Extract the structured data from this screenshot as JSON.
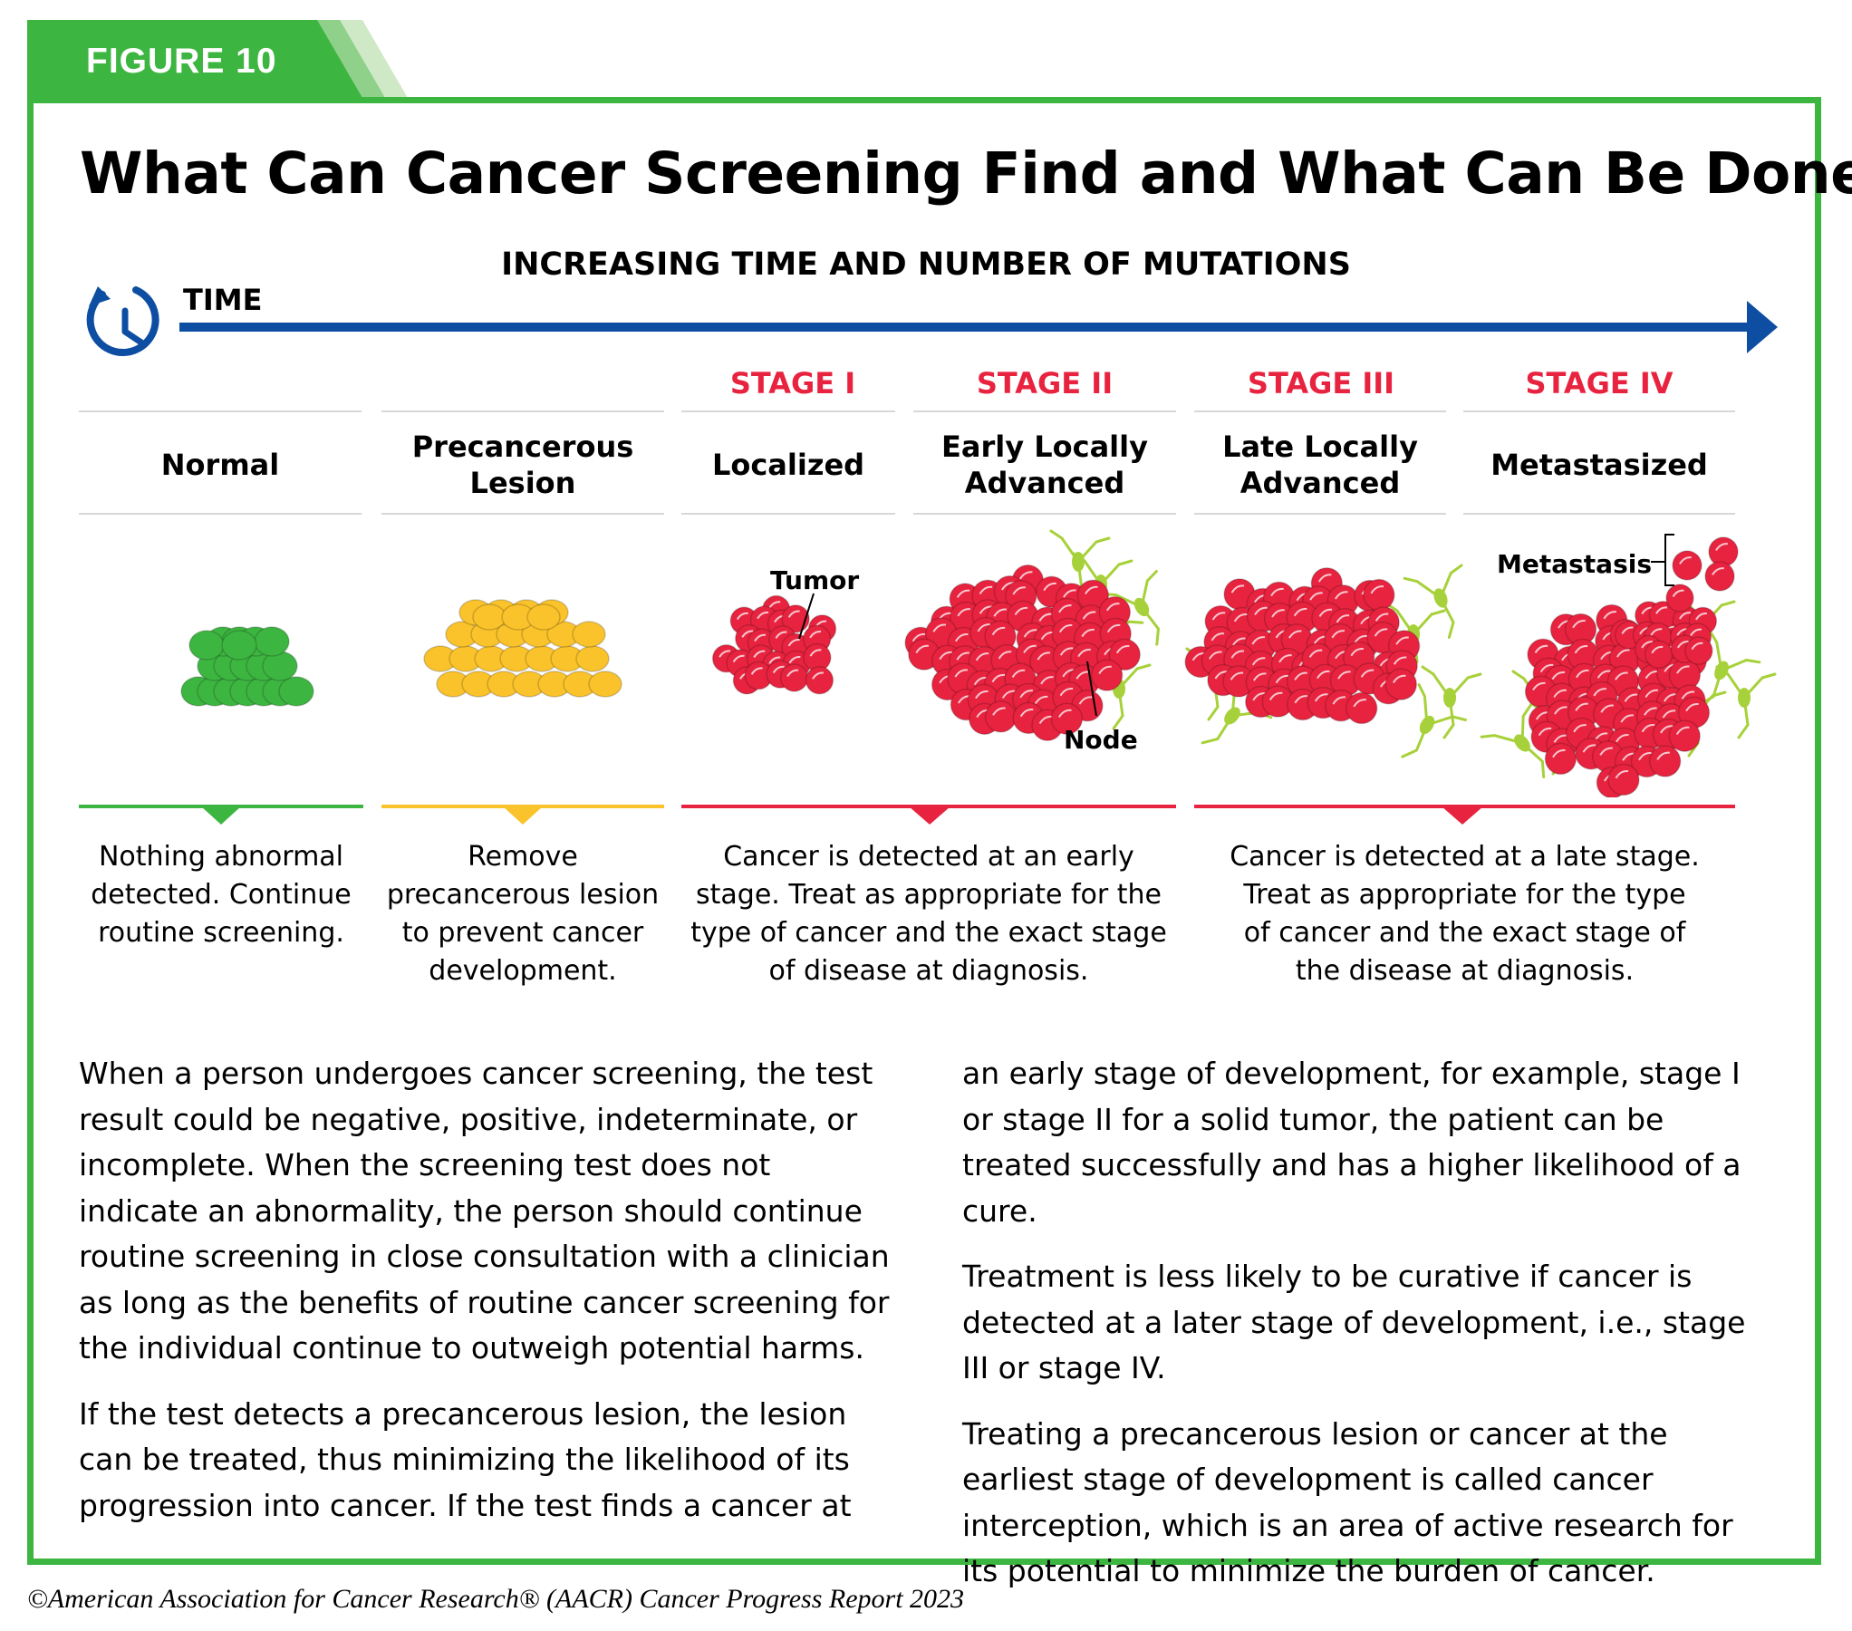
{
  "figure_label": "FIGURE 10",
  "title": "What Can Cancer Screening Find and What Can Be Done?",
  "axis_caption": "INCREASING TIME AND NUMBER OF MUTATIONS",
  "time_label": "TIME",
  "colors": {
    "green": "#3db541",
    "yellow": "#fbc32b",
    "red": "#e8233f",
    "blue": "#0d4ea2",
    "tissue": "#a7d13a"
  },
  "stages": [
    "STAGE I",
    "STAGE II",
    "STAGE III",
    "STAGE IV"
  ],
  "columns": [
    {
      "title": "Normal"
    },
    {
      "title": "Precancerous\nLesion"
    },
    {
      "title": "Localized"
    },
    {
      "title": "Early Locally\nAdvanced"
    },
    {
      "title": "Late Locally\nAdvanced"
    },
    {
      "title": "Metastasized"
    }
  ],
  "illustration_labels": {
    "tumor": "Tumor",
    "node": "Node",
    "metastasis": "Metastasis"
  },
  "descriptions": [
    "Nothing abnormal\ndetected. Continue\nroutine screening.",
    "Remove\nprecancerous lesion\nto prevent cancer\ndevelopment.",
    "Cancer is detected at an early\nstage. Treat as appropriate for the\ntype of cancer and the exact stage\nof disease at diagnosis.",
    "Cancer is detected at a late stage.\nTreat as appropriate for the type\nof cancer and the exact stage of\nthe disease at diagnosis."
  ],
  "body_left": [
    "When a person undergoes cancer screening, the test result could be negative, positive, indeterminate, or incomplete. When the screening test does not indicate an abnormality, the person should continue routine screening in close consultation with a clinician as long as the benefits of routine cancer screening for the individual continue to outweigh potential harms.",
    "If the test detects a precancerous lesion, the lesion can be treated, thus minimizing the likelihood of its progression into cancer. If the test finds a cancer at"
  ],
  "body_right": [
    "an early stage of development, for example, stage I or stage II for a solid tumor, the patient can be treated successfully and has a higher likelihood of a cure.",
    "Treatment is less likely to be curative if cancer is detected at a later stage of development, i.e., stage III or stage IV.",
    "Treating a precancerous lesion or cancer at the earliest stage of development is called cancer interception, which is an area of active research for its potential to minimize the burden of cancer."
  ],
  "footer": "©American Association for Cancer Research® (AACR) Cancer Progress Report 2023"
}
